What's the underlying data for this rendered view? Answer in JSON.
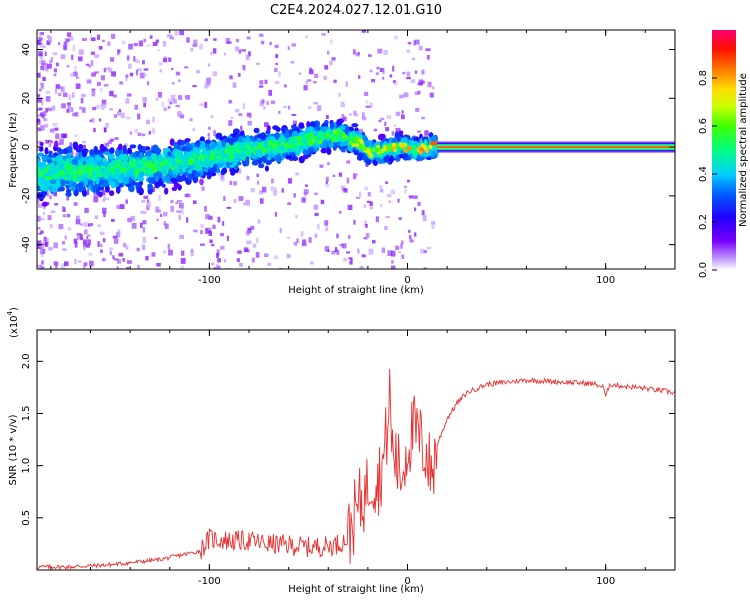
{
  "title": "C2E4.2024.027.12.01.G10",
  "colors": {
    "signal": "#e83030",
    "axis": "#000000",
    "background": "#ffffff"
  },
  "chart_data": [
    {
      "type": "heatmap",
      "name": "spectrogram",
      "xlabel": "Height of straight line (km)",
      "ylabel": "Frequency (Hz)",
      "xlim": [
        -187,
        135
      ],
      "ylim": [
        -50,
        48
      ],
      "xticks": [
        -100,
        0,
        100
      ],
      "xtick_labels": [
        "-100",
        "0",
        "100"
      ],
      "yticks": [
        -40,
        -20,
        0,
        20,
        40
      ],
      "ytick_labels": [
        "-40",
        "-20",
        "0",
        "20",
        "40"
      ],
      "ridge": {
        "x": [
          -187,
          -160,
          -140,
          -120,
          -100,
          -80,
          -60,
          -45,
          -35,
          -25,
          -20,
          -15,
          -10,
          -5,
          0,
          5,
          10,
          15,
          135
        ],
        "y": [
          -11,
          -10,
          -9,
          -7,
          -4,
          -1,
          1,
          4,
          5,
          2,
          -2,
          -2,
          -1,
          0,
          0,
          -1,
          0,
          0,
          0
        ]
      },
      "stable_band_x": [
        15,
        135
      ],
      "colorbar": {
        "label": "Normalized spectral amplitude",
        "range": [
          0.0,
          1.0
        ],
        "ticks": [
          0.0,
          0.2,
          0.4,
          0.6,
          0.8
        ],
        "tick_labels": [
          "0.0",
          "0.2",
          "0.4",
          "0.6",
          "0.8"
        ]
      }
    },
    {
      "type": "line",
      "name": "snr",
      "xlabel": "Height of straight line (km)",
      "ylabel": "SNR (10 * v/v)",
      "y_multiplier": "(x10",
      "y_exponent": "4",
      "y_multiplier_close": ")",
      "xlim": [
        -187,
        135
      ],
      "ylim": [
        0,
        2.3
      ],
      "xticks": [
        -100,
        0,
        100
      ],
      "xtick_labels": [
        "-100",
        "0",
        "100"
      ],
      "yticks": [
        0.5,
        1.0,
        1.5,
        2.0
      ],
      "ytick_labels": [
        "0.5",
        "1.0",
        "1.5",
        "2.0"
      ],
      "series": [
        {
          "name": "SNR",
          "x": [
            -187,
            -170,
            -150,
            -135,
            -125,
            -105,
            -100,
            -90,
            -80,
            -70,
            -60,
            -50,
            -40,
            -35,
            -30,
            -28,
            -25,
            -22,
            -20,
            -18,
            -15,
            -12,
            -10,
            -9,
            -8,
            -5,
            -3,
            0,
            3,
            6,
            10,
            12,
            15,
            20,
            25,
            30,
            40,
            50,
            60,
            70,
            80,
            90,
            95,
            99,
            100,
            102,
            110,
            120,
            135
          ],
          "y": [
            0.03,
            0.03,
            0.05,
            0.08,
            0.1,
            0.18,
            0.3,
            0.28,
            0.28,
            0.25,
            0.24,
            0.22,
            0.23,
            0.25,
            0.3,
            0.45,
            0.6,
            0.7,
            0.8,
            0.9,
            0.85,
            1.05,
            1.4,
            1.7,
            1.2,
            1.0,
            0.9,
            1.2,
            1.35,
            1.25,
            1.1,
            0.9,
            1.2,
            1.45,
            1.6,
            1.7,
            1.78,
            1.8,
            1.82,
            1.81,
            1.8,
            1.79,
            1.78,
            1.75,
            1.65,
            1.78,
            1.76,
            1.74,
            1.7
          ]
        }
      ]
    }
  ]
}
